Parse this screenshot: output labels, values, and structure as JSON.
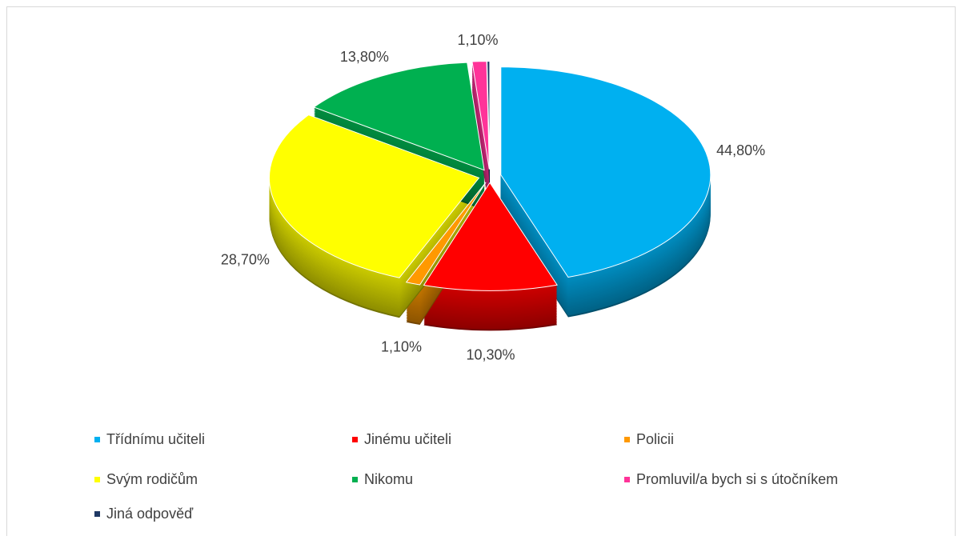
{
  "chart_data": {
    "type": "pie",
    "categories": [
      "Třídnímu učiteli",
      "Jinému učiteli",
      "Policii",
      "Svým rodičům",
      "Nikomu",
      "Promluvil/a bych si s útočníkem",
      "Jiná odpověď"
    ],
    "values": [
      44.8,
      10.3,
      1.1,
      28.7,
      13.8,
      1.1,
      0.2
    ],
    "value_labels": [
      "44,80%",
      "10,30%",
      "1,10%",
      "28,70%",
      "13,80%",
      "1,10%",
      null
    ],
    "colors": [
      "#00b0f0",
      "#ff0000",
      "#ff9900",
      "#ffff00",
      "#00b050",
      "#ff3399",
      "#1f3864"
    ],
    "legend": "bottom"
  }
}
